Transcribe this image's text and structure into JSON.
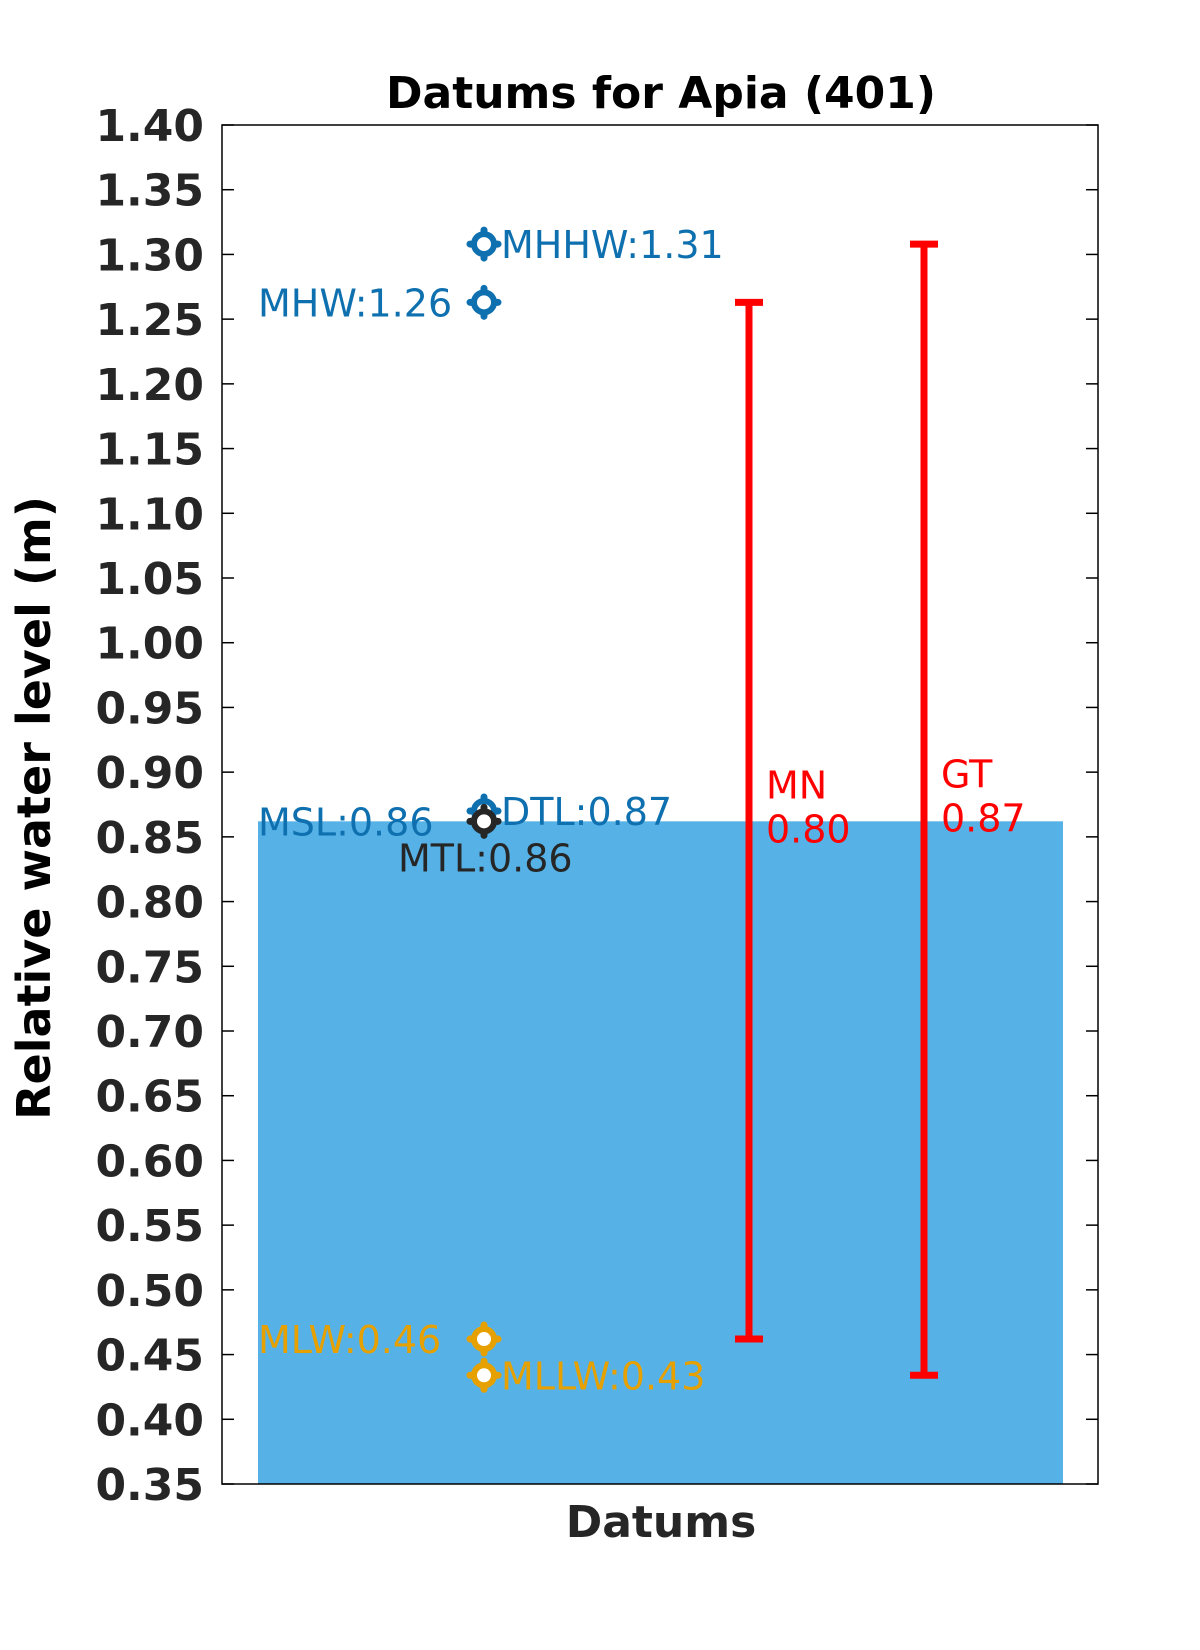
{
  "chart_data": {
    "type": "bar",
    "title": "Datums for Apia (401)",
    "xlabel": "Datums",
    "ylabel": "Relative water level (m)",
    "ylim": [
      0.35,
      1.4
    ],
    "yticks": [
      "0.35",
      "0.40",
      "0.45",
      "0.50",
      "0.55",
      "0.60",
      "0.65",
      "0.70",
      "0.75",
      "0.80",
      "0.85",
      "0.90",
      "0.95",
      "1.00",
      "1.05",
      "1.10",
      "1.15",
      "1.20",
      "1.25",
      "1.30",
      "1.35",
      "1.40"
    ],
    "grid": false,
    "bar": {
      "value": 0.862,
      "color": "#56b2e6"
    },
    "datums": [
      {
        "name": "MHHW",
        "value": 1.308,
        "label": "MHHW:1.31",
        "color": "#0f70b0",
        "label_side": "right"
      },
      {
        "name": "MHW",
        "value": 1.263,
        "label": "MHW:1.26",
        "color": "#0f70b0",
        "label_side": "left"
      },
      {
        "name": "DTL",
        "value": 0.87,
        "label": "DTL:0.87",
        "color": "#0f70b0",
        "label_side": "right"
      },
      {
        "name": "MSL",
        "value": 0.862,
        "label": "MSL:0.86",
        "color": "#0f70b0",
        "label_side": "left"
      },
      {
        "name": "MTL",
        "value": 0.862,
        "label": "MTL:0.86",
        "color": "#262626",
        "label_side": "below"
      },
      {
        "name": "MLW",
        "value": 0.462,
        "label": "MLW:0.46",
        "color": "#e6a000",
        "label_side": "left"
      },
      {
        "name": "MLLW",
        "value": 0.434,
        "label": "MLLW:0.43",
        "color": "#e6a000",
        "label_side": "right"
      }
    ],
    "ranges": [
      {
        "name": "MN",
        "low": 0.462,
        "high": 1.263,
        "label_name": "MN",
        "label_value": "0.80",
        "color": "#ff0000"
      },
      {
        "name": "GT",
        "low": 0.434,
        "high": 1.308,
        "label_name": "GT",
        "label_value": "0.87",
        "color": "#ff0000"
      }
    ]
  }
}
